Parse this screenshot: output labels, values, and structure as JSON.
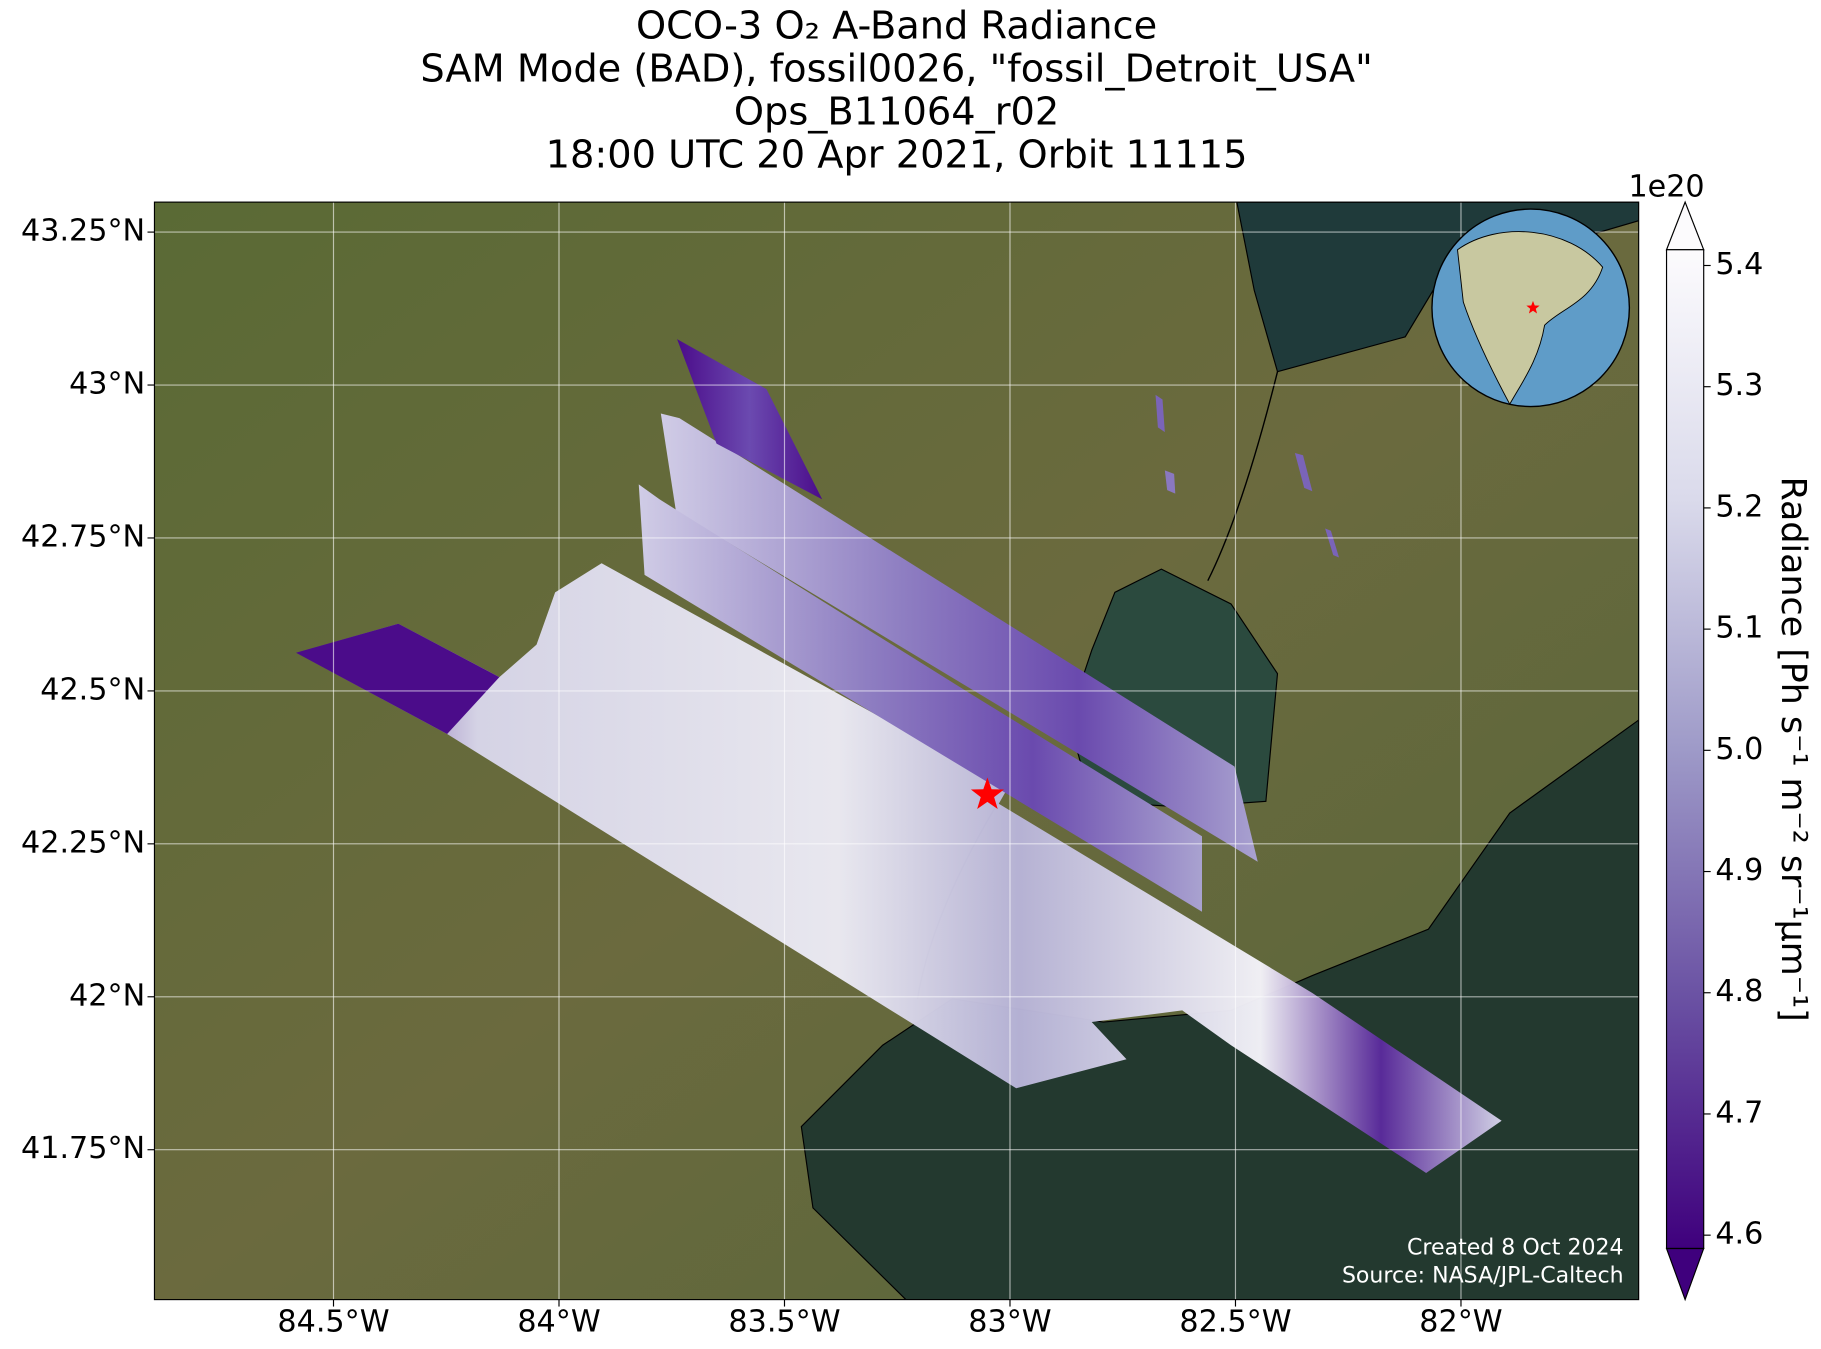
{
  "chart_data": {
    "type": "map",
    "title": [
      "OCO-3 O₂ A-Band Radiance",
      "SAM Mode (BAD), fossil0026, \"fossil_Detroit_USA\"",
      "Ops_B11064_r02",
      "18:00 UTC 20 Apr 2021, Orbit 11115"
    ],
    "xlim": [
      -84.897,
      -81.606
    ],
    "ylim": [
      41.505,
      43.299
    ],
    "xticks": [
      {
        "value": -84.5,
        "label": "84.5°W"
      },
      {
        "value": -84,
        "label": "84°W"
      },
      {
        "value": -83.5,
        "label": "83.5°W"
      },
      {
        "value": -83,
        "label": "83°W"
      },
      {
        "value": -82.5,
        "label": "82.5°W"
      },
      {
        "value": -82,
        "label": "82°W"
      }
    ],
    "yticks": [
      {
        "value": 41.75,
        "label": "41.75°N"
      },
      {
        "value": 42,
        "label": "42°N"
      },
      {
        "value": 42.25,
        "label": "42.25°N"
      },
      {
        "value": 42.5,
        "label": "42.5°N"
      },
      {
        "value": 42.75,
        "label": "42.75°N"
      },
      {
        "value": 43,
        "label": "43°N"
      },
      {
        "value": 43.25,
        "label": "43.25°N"
      }
    ],
    "grid": true,
    "target": {
      "x": -83.05,
      "y": 42.33,
      "color": "#ff0000"
    },
    "colorbar": {
      "label": "Radiance [Ph s⁻¹ m⁻² sr⁻¹μm⁻¹]",
      "offset_label": "1e20",
      "lim": [
        4.589,
        5.413
      ],
      "ticks": [
        4.6,
        4.7,
        4.8,
        4.9,
        {
          "value": 5,
          "label": "5.0"
        },
        5.1,
        5.2,
        5.3,
        5.4
      ]
    },
    "annotations": [
      "Created 8 Oct 2024",
      "Source: NASA/JPL-Caltech"
    ]
  }
}
